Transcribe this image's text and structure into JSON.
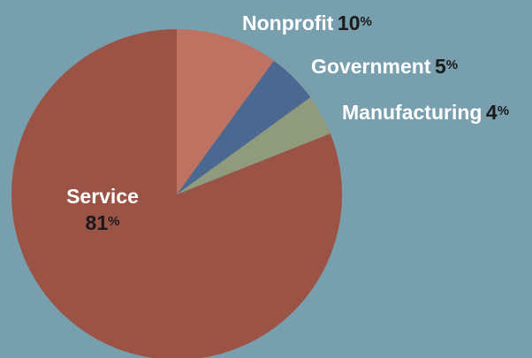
{
  "chart_data": {
    "type": "pie",
    "slices": [
      {
        "label": "Nonprofit",
        "value": 10,
        "color": "#bd7262"
      },
      {
        "label": "Government",
        "value": 5,
        "color": "#4b6891"
      },
      {
        "label": "Manufacturing",
        "value": 4,
        "color": "#8f9b7c"
      },
      {
        "label": "Service",
        "value": 81,
        "color": "#9b5346"
      }
    ],
    "value_suffix": "%"
  }
}
